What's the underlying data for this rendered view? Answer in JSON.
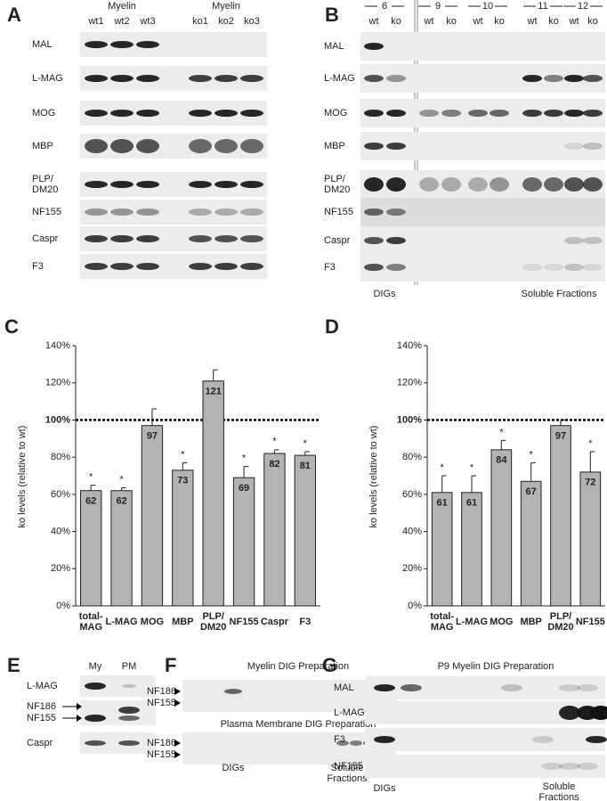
{
  "panels": {
    "A": {
      "letter": "A",
      "groups": [
        "Myelin",
        "Myelin"
      ],
      "lanes": [
        "wt1",
        "wt2",
        "wt3",
        "ko1",
        "ko2",
        "ko3"
      ],
      "rows": [
        "MAL",
        "L-MAG",
        "MOG",
        "MBP",
        "PLP/\nDM20",
        "NF155",
        "Caspr",
        "F3"
      ]
    },
    "B": {
      "letter": "B",
      "fractions": [
        "6",
        "9",
        "10",
        "11",
        "12"
      ],
      "lanes": [
        "wt",
        "ko",
        "wt",
        "ko",
        "wt",
        "ko",
        "wt",
        "ko",
        "wt",
        "ko"
      ],
      "rows": [
        "MAL",
        "L-MAG",
        "MOG",
        "MBP",
        "PLP/\nDM20",
        "NF155",
        "Caspr",
        "F3"
      ],
      "footer": [
        "DIGs",
        "Soluble Fractions"
      ]
    },
    "E": {
      "letter": "E",
      "lanes": [
        "My",
        "PM"
      ],
      "rows": [
        "L-MAG",
        "NF186",
        "NF155",
        "Caspr"
      ]
    },
    "F": {
      "letter": "F",
      "sections": [
        {
          "title": "Myelin DIG Preparation",
          "markers": [
            "NF186",
            "NF155"
          ]
        },
        {
          "title": "Plasma Membrane DIG Preparation",
          "markers": [
            "NF186",
            "NF155"
          ]
        }
      ],
      "footer": [
        "DIGs",
        "Soluble\nFractions"
      ]
    },
    "G": {
      "letter": "G",
      "title": "P9 Myelin DIG Preparation",
      "rows": [
        "MAL",
        "L-MAG",
        "F3",
        "NF155"
      ],
      "footer": [
        "DIGs",
        "Soluble\nFractions"
      ]
    }
  },
  "chart_data": [
    {
      "type": "bar",
      "label": "C",
      "y_label": "ko levels (relative to wt)",
      "categories": [
        "total-\nMAG",
        "L-MAG",
        "MOG",
        "MBP",
        "PLP/\nDM20",
        "NF155",
        "Caspr",
        "F3"
      ],
      "values": [
        62,
        62,
        97,
        73,
        121,
        69,
        82,
        81
      ],
      "errors": [
        3,
        1.5,
        9,
        4,
        6,
        6,
        2,
        2
      ],
      "significance": [
        "*",
        "*",
        null,
        "*",
        null,
        "*",
        "*",
        "*"
      ],
      "color": "#b3b3b3",
      "ylim": [
        0,
        140
      ],
      "yticks": [
        {
          "value": 0,
          "label": "0%"
        },
        {
          "value": 20,
          "label": "20%"
        },
        {
          "value": 40,
          "label": "40%"
        },
        {
          "value": 60,
          "label": "60%"
        },
        {
          "value": 80,
          "label": "80%"
        },
        {
          "value": 100,
          "label": "100%"
        },
        {
          "value": 120,
          "label": "120%"
        },
        {
          "value": 140,
          "label": "140%"
        }
      ],
      "reference_line": 100
    },
    {
      "type": "bar",
      "label": "D",
      "y_label": "ko levels (relative to wt)",
      "categories": [
        "total-\nMAG",
        "L-MAG",
        "MOG",
        "MBP",
        "PLP/\nDM20",
        "NF155"
      ],
      "values": [
        61,
        61,
        84,
        67,
        97,
        72
      ],
      "errors": [
        9,
        9,
        5,
        10,
        3,
        11
      ],
      "significance": [
        "*",
        "*",
        "*",
        "*",
        null,
        "*"
      ],
      "color": "#b3b3b3",
      "ylim": [
        0,
        140
      ],
      "yticks": [
        {
          "value": 0,
          "label": "0%"
        },
        {
          "value": 20,
          "label": "20%"
        },
        {
          "value": 40,
          "label": "40%"
        },
        {
          "value": 60,
          "label": "60%"
        },
        {
          "value": 80,
          "label": "80%"
        },
        {
          "value": 100,
          "label": "100%"
        },
        {
          "value": 120,
          "label": "120%"
        },
        {
          "value": 140,
          "label": "140%"
        }
      ],
      "reference_line": 100
    }
  ]
}
